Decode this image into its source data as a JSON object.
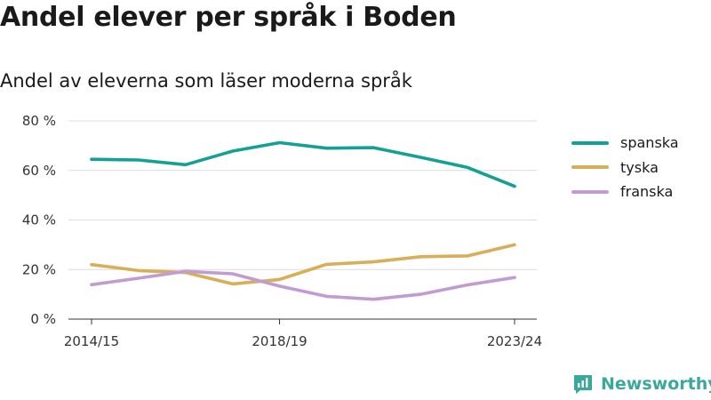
{
  "title": "Andel elever per språk i Boden",
  "subtitle": "Andel av eleverna som läser moderna språk",
  "brand": {
    "name": "Newsworthy",
    "icon": "bar-chart-logo-icon",
    "color": "#3aa89b"
  },
  "chart_data": {
    "type": "line",
    "x": [
      "2014/15",
      "2015/16",
      "2016/17",
      "2017/18",
      "2018/19",
      "2019/20",
      "2020/21",
      "2021/22",
      "2022/23",
      "2023/24"
    ],
    "x_tick_labels": [
      "2014/15",
      "2018/19",
      "2023/24"
    ],
    "y_tick_labels": [
      "0 %",
      "20 %",
      "40 %",
      "60 %",
      "80 %"
    ],
    "y_ticks": [
      0,
      20,
      40,
      60,
      80
    ],
    "ylim": [
      0,
      80
    ],
    "grid": true,
    "legend_position": "right",
    "series": [
      {
        "name": "spanska",
        "color": "#14a095",
        "values": [
          64.5,
          64.2,
          62.3,
          67.8,
          71.2,
          69.0,
          69.2,
          65.3,
          61.2,
          53.6
        ]
      },
      {
        "name": "tyska",
        "color": "#d8ae58",
        "values": [
          22.0,
          19.6,
          18.8,
          14.2,
          16.0,
          22.1,
          23.1,
          25.2,
          25.5,
          30.0
        ]
      },
      {
        "name": "franska",
        "color": "#c39bd3",
        "values": [
          13.9,
          16.5,
          19.3,
          18.3,
          13.3,
          9.2,
          8.0,
          10.0,
          13.8,
          16.8
        ]
      }
    ]
  }
}
